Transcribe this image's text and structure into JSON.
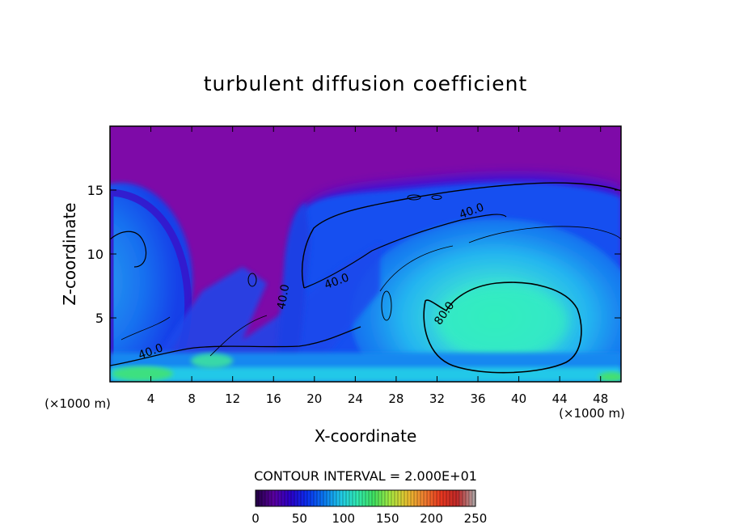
{
  "chart_data": {
    "type": "heatmap",
    "title": "turbulent diffusion coefficient",
    "xlabel": "X-coordinate",
    "ylabel": "Z-coordinate",
    "x_unit_left": "(×1000 m)",
    "x_unit_right": "(×1000 m)",
    "xlim": [
      0,
      50
    ],
    "ylim": [
      0,
      20
    ],
    "xticks": [
      "4",
      "8",
      "12",
      "16",
      "20",
      "24",
      "28",
      "32",
      "36",
      "40",
      "44",
      "48"
    ],
    "xtick_values": [
      4,
      8,
      12,
      16,
      20,
      24,
      28,
      32,
      36,
      40,
      44,
      48
    ],
    "yticks": [
      "5",
      "10",
      "15"
    ],
    "ytick_values": [
      5,
      10,
      15
    ],
    "contour_interval_text": "CONTOUR INTERVAL = 2.000E+01",
    "contour_labels": [
      {
        "text": "40.0",
        "x": 35.5,
        "y": 13.1
      },
      {
        "text": "40.0",
        "x": 22.3,
        "y": 7.6
      },
      {
        "text": "40.0",
        "x": 17.3,
        "y": 6.6
      },
      {
        "text": "80.0",
        "x": 33.0,
        "y": 5.2
      },
      {
        "text": "40.0",
        "x": 4.1,
        "y": 2.1
      }
    ],
    "colorbar": {
      "min": 0,
      "max": 250,
      "tick_labels": [
        "0",
        "50",
        "100",
        "150",
        "200",
        "250"
      ],
      "tick_values": [
        0,
        50,
        100,
        150,
        200,
        250
      ],
      "colors": [
        "#26004a",
        "#5a00a0",
        "#2a00c8",
        "#0a30f0",
        "#0a78f0",
        "#20c8e8",
        "#30e8b0",
        "#40e060",
        "#a8e840",
        "#e8c030",
        "#f08030",
        "#e83820",
        "#c02828",
        "#b0a0a0"
      ]
    },
    "features": [
      {
        "name": "background",
        "value": 0,
        "color": "#7e0aa8"
      },
      {
        "name": "right-vortex",
        "center": [
          39,
          5
        ],
        "peak": 100
      },
      {
        "name": "left-vortex",
        "center": [
          1,
          8
        ],
        "peak": 60
      },
      {
        "name": "surface-layer",
        "z_top": 1.5,
        "peak": 110
      }
    ]
  }
}
